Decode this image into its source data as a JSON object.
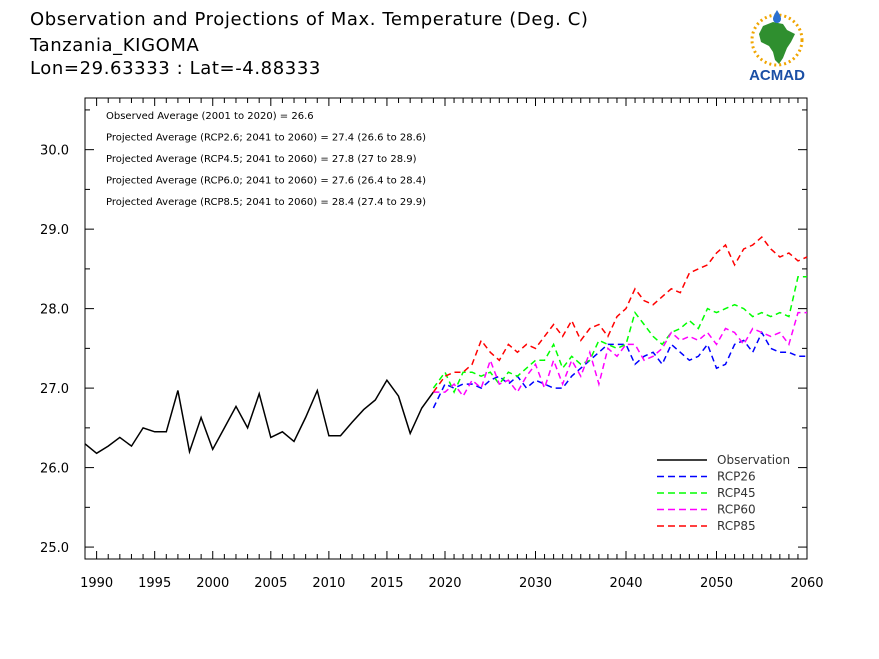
{
  "header": {
    "title": "Observation and Projections of Max. Temperature (Deg. C)",
    "station": "Tanzania_KIGOMA",
    "coords": "Lon=29.63333 : Lat=-4.88333"
  },
  "logo": {
    "text": "ACMAD"
  },
  "annotations": [
    "Observed Average (2001 to 2020) = 26.6",
    "Projected Average (RCP2.6; 2041 to 2060) = 27.4 (26.6 to 28.6)",
    "Projected Average (RCP4.5; 2041 to 2060) = 27.8 (27 to 28.9)",
    "Projected Average (RCP6.0; 2041 to 2060) = 27.6 (26.4 to 28.4)",
    "Projected Average (RCP8.5; 2041 to 2060) = 28.4 (27.4 to 29.9)"
  ],
  "chart_data": {
    "type": "line",
    "title": "Observation and Projections of Max. Temperature (Deg. C)",
    "xlabel": "",
    "ylabel": "",
    "xlim": [
      1989,
      2060
    ],
    "ylim": [
      24.85,
      30.65
    ],
    "x_ticks": [
      "1990",
      "1995",
      "2000",
      "2005",
      "2010",
      "2015",
      "2020",
      "2030",
      "2040",
      "2050",
      "2060"
    ],
    "y_ticks": [
      "25.0",
      "26.0",
      "27.0",
      "28.0",
      "29.0",
      "30.0"
    ],
    "grid": false,
    "legend_position": "bottom-right",
    "series": [
      {
        "name": "Observation",
        "color": "#000000",
        "dash": "solid",
        "x": [
          1989,
          1990,
          1991,
          1992,
          1993,
          1994,
          1995,
          1996,
          1997,
          1998,
          1999,
          2000,
          2001,
          2002,
          2003,
          2004,
          2005,
          2006,
          2007,
          2008,
          2009,
          2010,
          2011,
          2012,
          2013,
          2014,
          2015,
          2016,
          2017,
          2018,
          2019
        ],
        "values": [
          26.3,
          26.18,
          26.27,
          26.38,
          26.27,
          26.5,
          26.45,
          26.45,
          26.97,
          26.2,
          26.63,
          26.23,
          26.5,
          26.77,
          26.5,
          26.93,
          26.38,
          26.45,
          26.33,
          26.63,
          26.97,
          26.4,
          26.4,
          26.57,
          26.73,
          26.85,
          27.1,
          26.9,
          26.43,
          26.75,
          26.95
        ]
      },
      {
        "name": "RCP26",
        "color": "#0000ff",
        "dash": "dashed",
        "x": [
          2019,
          2020,
          2021,
          2022,
          2023,
          2024,
          2025,
          2026,
          2027,
          2028,
          2029,
          2030,
          2031,
          2032,
          2033,
          2034,
          2035,
          2036,
          2037,
          2038,
          2039,
          2040,
          2041,
          2042,
          2043,
          2044,
          2045,
          2046,
          2047,
          2048,
          2049,
          2050,
          2051,
          2052,
          2053,
          2054,
          2055,
          2056,
          2057,
          2058,
          2059,
          2060
        ],
        "values": [
          26.75,
          27.05,
          27.0,
          27.05,
          27.05,
          27.0,
          27.1,
          27.15,
          27.05,
          27.15,
          27.0,
          27.1,
          27.05,
          27.0,
          27.0,
          27.15,
          27.25,
          27.35,
          27.45,
          27.55,
          27.55,
          27.55,
          27.3,
          27.4,
          27.45,
          27.3,
          27.55,
          27.45,
          27.35,
          27.4,
          27.55,
          27.25,
          27.3,
          27.55,
          27.6,
          27.45,
          27.7,
          27.5,
          27.45,
          27.45,
          27.4,
          27.4
        ]
      },
      {
        "name": "RCP45",
        "color": "#00ff00",
        "dash": "dashed",
        "x": [
          2019,
          2020,
          2021,
          2022,
          2023,
          2024,
          2025,
          2026,
          2027,
          2028,
          2029,
          2030,
          2031,
          2032,
          2033,
          2034,
          2035,
          2036,
          2037,
          2038,
          2039,
          2040,
          2041,
          2042,
          2043,
          2044,
          2045,
          2046,
          2047,
          2048,
          2049,
          2050,
          2051,
          2052,
          2053,
          2054,
          2055,
          2056,
          2057,
          2058,
          2059,
          2060
        ],
        "values": [
          27.0,
          27.2,
          26.95,
          27.2,
          27.2,
          27.15,
          27.2,
          27.05,
          27.2,
          27.15,
          27.25,
          27.35,
          27.35,
          27.55,
          27.25,
          27.4,
          27.3,
          27.35,
          27.6,
          27.55,
          27.5,
          27.55,
          27.95,
          27.8,
          27.65,
          27.55,
          27.7,
          27.75,
          27.85,
          27.75,
          28.0,
          27.95,
          28.0,
          28.05,
          28.0,
          27.9,
          27.95,
          27.9,
          27.95,
          27.9,
          28.4,
          28.4
        ]
      },
      {
        "name": "RCP60",
        "color": "#ff00ff",
        "dash": "dashed",
        "x": [
          2019,
          2020,
          2021,
          2022,
          2023,
          2024,
          2025,
          2026,
          2027,
          2028,
          2029,
          2030,
          2031,
          2032,
          2033,
          2034,
          2035,
          2036,
          2037,
          2038,
          2039,
          2040,
          2041,
          2042,
          2043,
          2044,
          2045,
          2046,
          2047,
          2048,
          2049,
          2050,
          2051,
          2052,
          2053,
          2054,
          2055,
          2056,
          2057,
          2058,
          2059,
          2060
        ],
        "values": [
          26.95,
          26.95,
          27.05,
          26.9,
          27.1,
          27.0,
          27.35,
          27.05,
          27.1,
          26.95,
          27.15,
          27.3,
          27.0,
          27.35,
          27.05,
          27.35,
          27.15,
          27.45,
          27.05,
          27.5,
          27.4,
          27.55,
          27.55,
          27.35,
          27.4,
          27.5,
          27.7,
          27.6,
          27.65,
          27.6,
          27.7,
          27.55,
          27.75,
          27.7,
          27.55,
          27.75,
          27.7,
          27.65,
          27.7,
          27.55,
          27.95,
          27.95
        ]
      },
      {
        "name": "RCP85",
        "color": "#ff0000",
        "dash": "dashed",
        "x": [
          2019,
          2020,
          2021,
          2022,
          2023,
          2024,
          2025,
          2026,
          2027,
          2028,
          2029,
          2030,
          2031,
          2032,
          2033,
          2034,
          2035,
          2036,
          2037,
          2038,
          2039,
          2040,
          2041,
          2042,
          2043,
          2044,
          2045,
          2046,
          2047,
          2048,
          2049,
          2050,
          2051,
          2052,
          2053,
          2054,
          2055,
          2056,
          2057,
          2058,
          2059,
          2060
        ],
        "values": [
          26.95,
          27.15,
          27.2,
          27.2,
          27.3,
          27.6,
          27.45,
          27.35,
          27.55,
          27.45,
          27.55,
          27.5,
          27.65,
          27.8,
          27.65,
          27.85,
          27.6,
          27.75,
          27.8,
          27.65,
          27.9,
          28.0,
          28.25,
          28.1,
          28.05,
          28.15,
          28.25,
          28.2,
          28.45,
          28.5,
          28.55,
          28.7,
          28.8,
          28.55,
          28.75,
          28.8,
          28.9,
          28.75,
          28.65,
          28.7,
          28.6,
          28.65
        ]
      }
    ]
  }
}
